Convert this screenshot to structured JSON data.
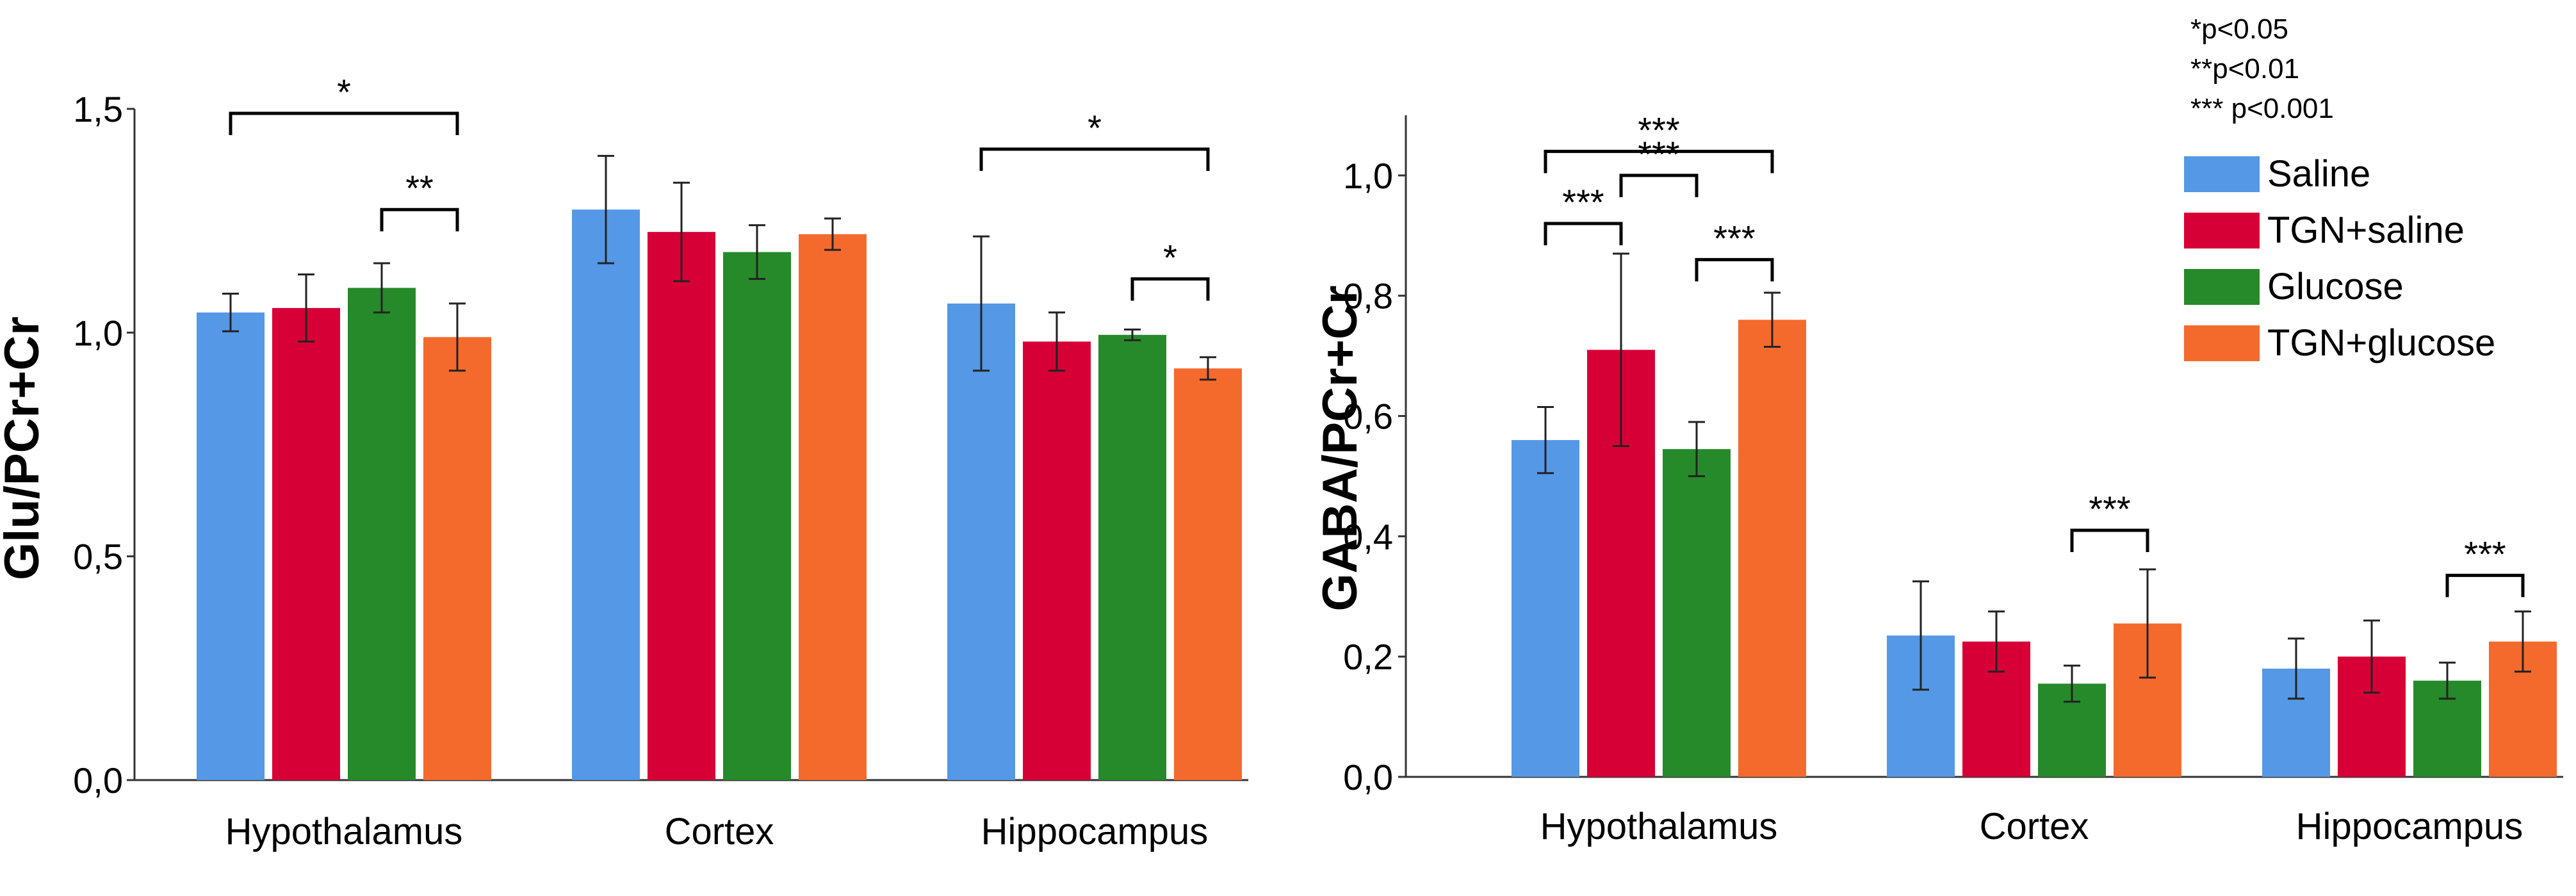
{
  "legend": {
    "notes": [
      "*p<0.05",
      "**p<0.01",
      "*** p<0.001"
    ],
    "items": [
      {
        "label": "Saline",
        "color": "#5598e5"
      },
      {
        "label": "TGN+saline",
        "color": "#d70036"
      },
      {
        "label": "Glucose",
        "color": "#268a2a"
      },
      {
        "label": "TGN+glucose",
        "color": "#f46a2d"
      }
    ]
  },
  "chart_data": [
    {
      "type": "bar",
      "title": "",
      "xlabel": "",
      "ylabel": "Glu/PCr+Cr",
      "categories": [
        "Hypothalamus",
        "Cortex",
        "Hippocampus"
      ],
      "ylim": [
        0,
        1.5
      ],
      "yticks": [
        0,
        0.5,
        1.0,
        1.5
      ],
      "ytick_labels": [
        "0,0",
        "0,5",
        "1,0",
        "1,5"
      ],
      "grid": false,
      "series": [
        {
          "name": "Saline",
          "values": [
            1.045,
            1.275,
            1.065
          ],
          "errors": [
            0.042,
            0.12,
            0.15
          ]
        },
        {
          "name": "TGN+saline",
          "values": [
            1.055,
            1.225,
            0.98
          ],
          "errors": [
            0.075,
            0.11,
            0.065
          ]
        },
        {
          "name": "Glucose",
          "values": [
            1.1,
            1.18,
            0.995
          ],
          "errors": [
            0.055,
            0.06,
            0.012
          ]
        },
        {
          "name": "TGN+glucose",
          "values": [
            0.99,
            1.22,
            0.92
          ],
          "errors": [
            0.075,
            0.035,
            0.025
          ]
        }
      ],
      "significance": [
        {
          "category": 0,
          "from_series": 0,
          "to_series": 3,
          "label": "*",
          "y": 1.49
        },
        {
          "category": 0,
          "from_series": 2,
          "to_series": 3,
          "label": "**",
          "y": 1.275
        },
        {
          "category": 2,
          "from_series": 0,
          "to_series": 3,
          "label": "*",
          "y": 1.41
        },
        {
          "category": 2,
          "from_series": 2,
          "to_series": 3,
          "label": "*",
          "y": 1.12
        }
      ]
    },
    {
      "type": "bar",
      "title": "",
      "xlabel": "",
      "ylabel": "GABA/PCr+Cr",
      "categories": [
        "Hypothalamus",
        "Cortex",
        "Hippocampus"
      ],
      "ylim": [
        0,
        1.1
      ],
      "yticks": [
        0,
        0.2,
        0.4,
        0.6,
        0.8,
        1.0
      ],
      "ytick_labels": [
        "0,0",
        "0,2",
        "0,4",
        "0,6",
        "0,8",
        "1,0"
      ],
      "grid": false,
      "series": [
        {
          "name": "Saline",
          "values": [
            0.56,
            0.235,
            0.18
          ],
          "errors": [
            0.055,
            0.09,
            0.05
          ]
        },
        {
          "name": "TGN+saline",
          "values": [
            0.71,
            0.225,
            0.2
          ],
          "errors": [
            0.16,
            0.05,
            0.06
          ]
        },
        {
          "name": "Glucose",
          "values": [
            0.545,
            0.155,
            0.16
          ],
          "errors": [
            0.045,
            0.03,
            0.03
          ]
        },
        {
          "name": "TGN+glucose",
          "values": [
            0.76,
            0.255,
            0.225
          ],
          "errors": [
            0.045,
            0.09,
            0.05
          ]
        }
      ],
      "significance": [
        {
          "category": 0,
          "from_series": 0,
          "to_series": 3,
          "label": "***",
          "y": 1.04
        },
        {
          "category": 0,
          "from_series": 1,
          "to_series": 2,
          "label": "***",
          "y": 1.0
        },
        {
          "category": 0,
          "from_series": 0,
          "to_series": 1,
          "label": "***",
          "y": 0.92
        },
        {
          "category": 0,
          "from_series": 2,
          "to_series": 3,
          "label": "***",
          "y": 0.86
        },
        {
          "category": 1,
          "from_series": 2,
          "to_series": 3,
          "label": "***",
          "y": 0.41
        },
        {
          "category": 2,
          "from_series": 2,
          "to_series": 3,
          "label": "***",
          "y": 0.335
        }
      ]
    }
  ]
}
